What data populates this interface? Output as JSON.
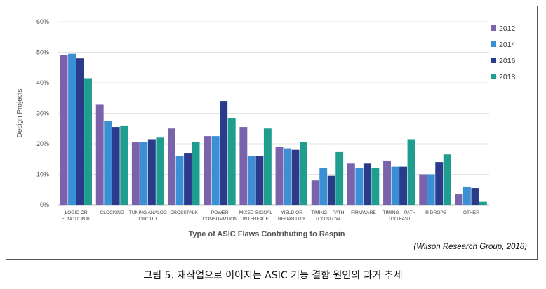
{
  "chart_data": {
    "type": "bar",
    "ylabel": "Design Projects",
    "xlabel": "Type of ASIC Flaws Contributing to Respin",
    "ylim": [
      0,
      60
    ],
    "yticks": [
      "0%",
      "10%",
      "20%",
      "30%",
      "40%",
      "50%",
      "60%"
    ],
    "grid": true,
    "legend_position": "right",
    "categories": [
      [
        "LOGIC OR",
        "FUNCTIONAL"
      ],
      [
        "CLOCKING"
      ],
      [
        "TUNING ANALOG",
        "CIRCUIT"
      ],
      [
        "CROSSTALK"
      ],
      [
        "POWER",
        "CONSUMPTION"
      ],
      [
        "MIXED-SIGNAL",
        "INTERFACE"
      ],
      [
        "YIELD OR",
        "RELIABILITY"
      ],
      [
        "TIMING – PATH",
        "TOO SLOW"
      ],
      [
        "FIRMWARE"
      ],
      [
        "TIMING – PATH",
        "TOO FAST"
      ],
      [
        "IR DROPS"
      ],
      [
        "OTHER"
      ]
    ],
    "series": [
      {
        "name": "2012",
        "color": "#7b62ac",
        "values": [
          49,
          33,
          20.5,
          25,
          22.5,
          25.5,
          19,
          8,
          13.5,
          14.5,
          10,
          3.5
        ]
      },
      {
        "name": "2014",
        "color": "#3b8fd4",
        "values": [
          49.5,
          27.5,
          20.5,
          16,
          22.5,
          16,
          18.5,
          12,
          12,
          12.5,
          10,
          6
        ]
      },
      {
        "name": "2016",
        "color": "#2b3b8c",
        "values": [
          48,
          25.5,
          21.5,
          17,
          34,
          16,
          18,
          9.5,
          13.5,
          12.5,
          14,
          5.5
        ]
      },
      {
        "name": "2018",
        "color": "#1f9d8f",
        "values": [
          41.5,
          26,
          22,
          20.5,
          28.5,
          25,
          20.5,
          17.5,
          12,
          21.5,
          16.5,
          1
        ]
      }
    ]
  },
  "source": "(Wilson Research Group, 2018)",
  "caption": "그림 5. 재작업으로 이어지는 ASIC 기능 결함 원인의 과거 추세"
}
